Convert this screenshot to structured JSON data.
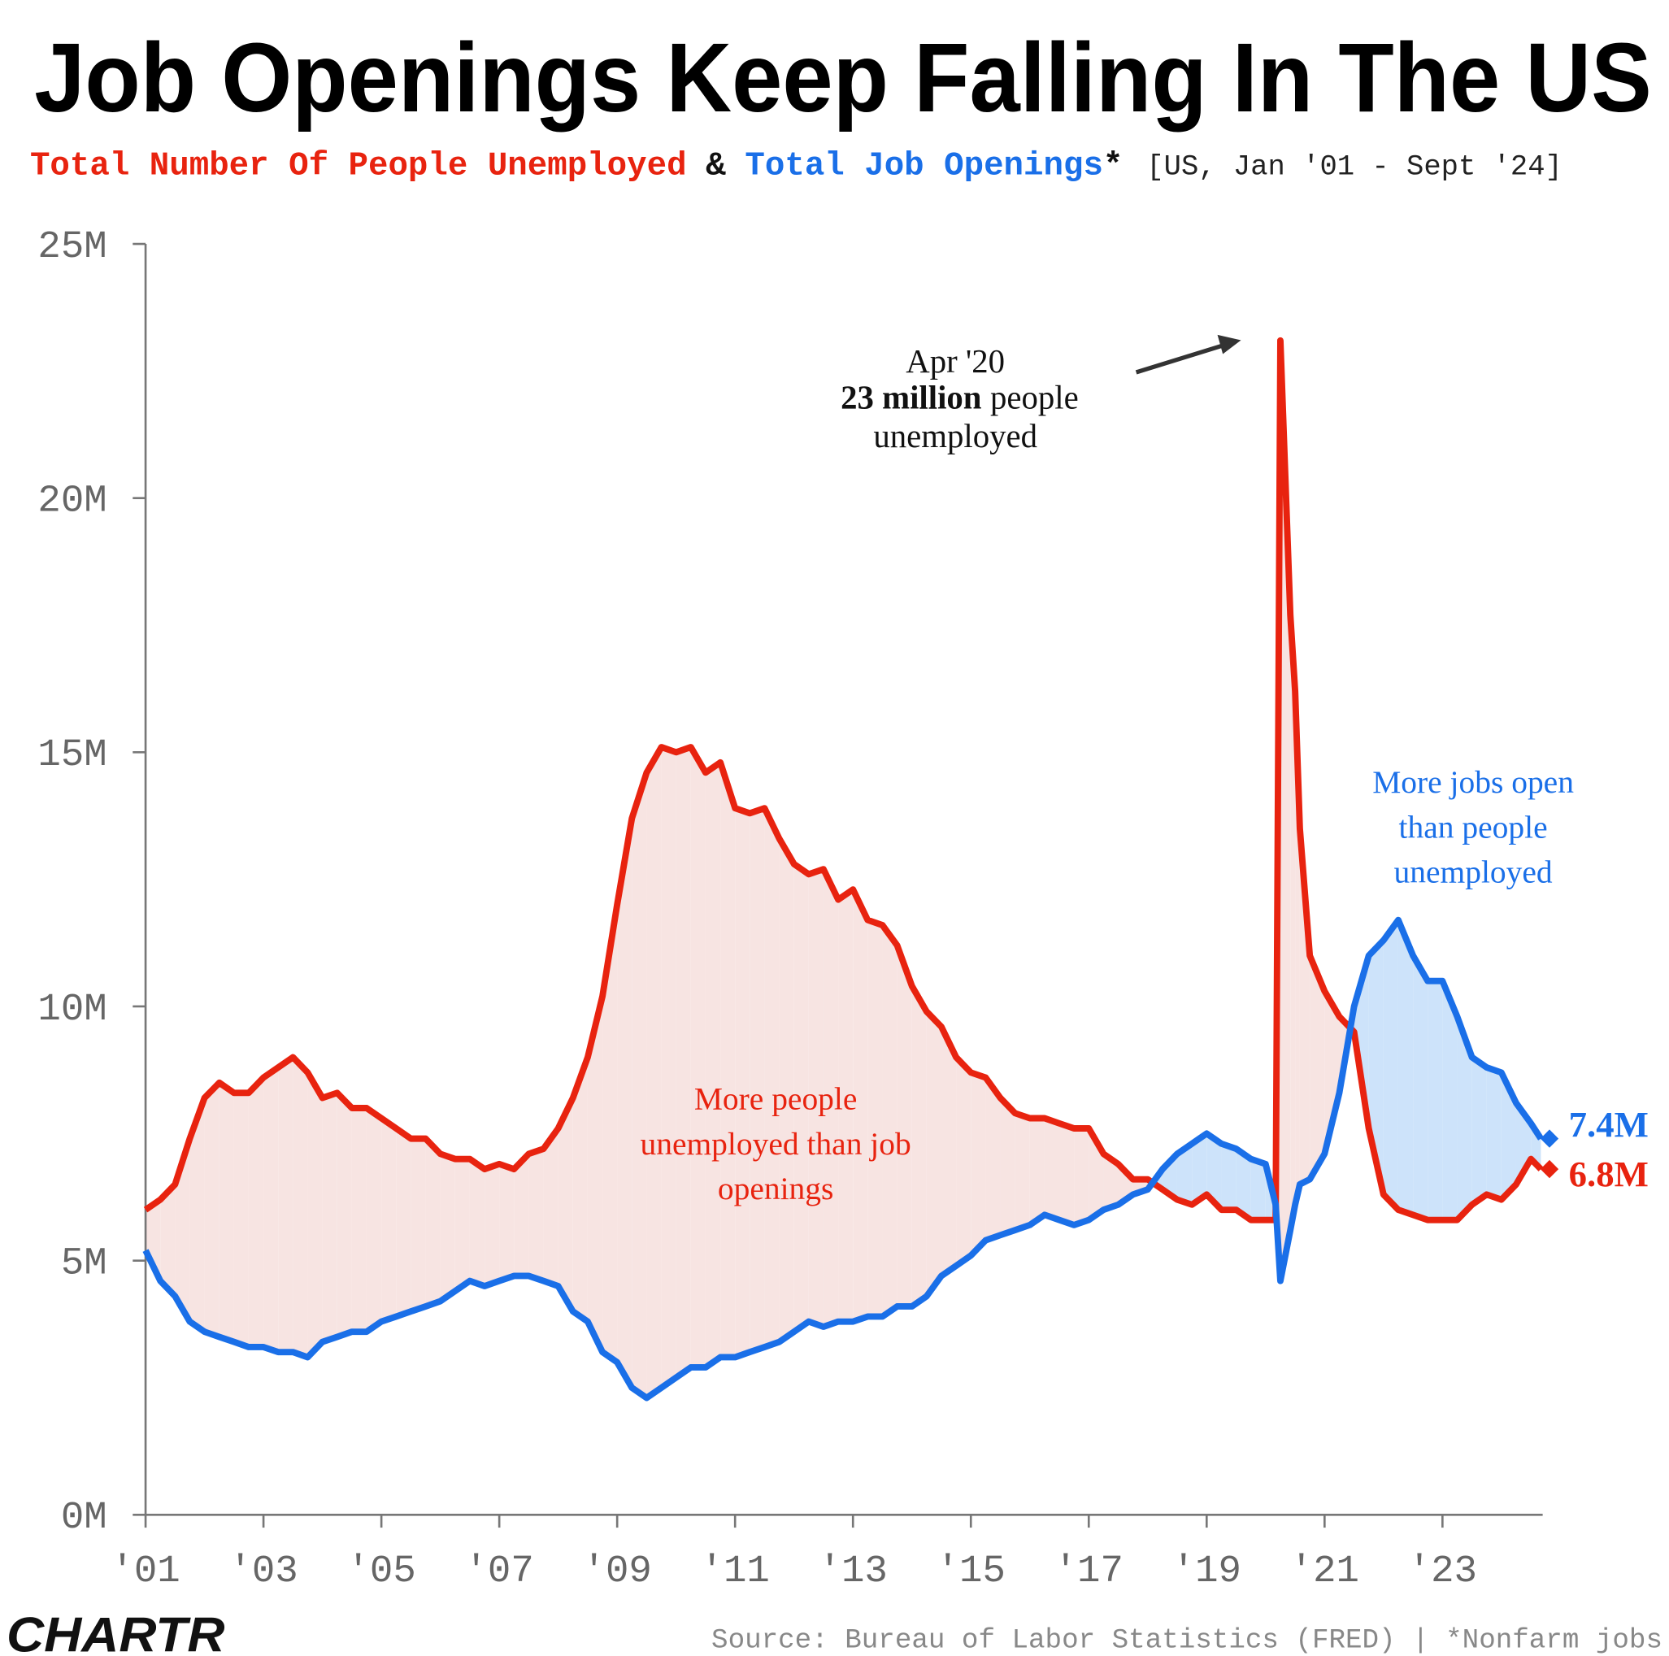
{
  "chart_data": {
    "type": "line",
    "title": "Job Openings Keep Falling In The US",
    "subtitle": {
      "joiner": "&",
      "star": "*",
      "range": "[US, Jan '01 - Sept '24]"
    },
    "xlim": [
      2001,
      2024.7
    ],
    "xticks": [
      {
        "value": 2001,
        "label": "'01"
      },
      {
        "value": 2003,
        "label": "'03"
      },
      {
        "value": 2005,
        "label": "'05"
      },
      {
        "value": 2007,
        "label": "'07"
      },
      {
        "value": 2009,
        "label": "'09"
      },
      {
        "value": 2011,
        "label": "'11"
      },
      {
        "value": 2013,
        "label": "'13"
      },
      {
        "value": 2015,
        "label": "'15"
      },
      {
        "value": 2017,
        "label": "'17"
      },
      {
        "value": 2019,
        "label": "'19"
      },
      {
        "value": 2021,
        "label": "'21"
      },
      {
        "value": 2023,
        "label": "'23"
      }
    ],
    "ylim": [
      0,
      25
    ],
    "yticks": [
      {
        "value": 0,
        "label": "0M"
      },
      {
        "value": 5,
        "label": "5M"
      },
      {
        "value": 10,
        "label": "10M"
      },
      {
        "value": 15,
        "label": "15M"
      },
      {
        "value": 20,
        "label": "20M"
      },
      {
        "value": 25,
        "label": "25M"
      }
    ],
    "x": [
      2001,
      2001.25,
      2001.5,
      2001.75,
      2002,
      2002.25,
      2002.5,
      2002.75,
      2003,
      2003.25,
      2003.5,
      2003.75,
      2004,
      2004.25,
      2004.5,
      2004.75,
      2005,
      2005.25,
      2005.5,
      2005.75,
      2006,
      2006.25,
      2006.5,
      2006.75,
      2007,
      2007.25,
      2007.5,
      2007.75,
      2008,
      2008.25,
      2008.5,
      2008.75,
      2009,
      2009.25,
      2009.5,
      2009.75,
      2010,
      2010.25,
      2010.5,
      2010.75,
      2011,
      2011.25,
      2011.5,
      2011.75,
      2012,
      2012.25,
      2012.5,
      2012.75,
      2013,
      2013.25,
      2013.5,
      2013.75,
      2014,
      2014.25,
      2014.5,
      2014.75,
      2015,
      2015.25,
      2015.5,
      2015.75,
      2016,
      2016.25,
      2016.5,
      2016.75,
      2017,
      2017.25,
      2017.5,
      2017.75,
      2018,
      2018.25,
      2018.5,
      2018.75,
      2019,
      2019.25,
      2019.5,
      2019.75,
      2020,
      2020.17,
      2020.25,
      2020.42,
      2020.5,
      2020.58,
      2020.75,
      2021,
      2021.25,
      2021.5,
      2021.75,
      2022,
      2022.25,
      2022.5,
      2022.75,
      2023,
      2023.25,
      2023.5,
      2023.75,
      2024,
      2024.25,
      2024.5,
      2024.67
    ],
    "series": [
      {
        "name": "Total Number Of People Unemployed",
        "color": "#e8230f",
        "fill": "#f7e4e2",
        "end_label": "6.8M",
        "values": [
          6.0,
          6.2,
          6.5,
          7.4,
          8.2,
          8.5,
          8.3,
          8.3,
          8.6,
          8.8,
          9.0,
          8.7,
          8.2,
          8.3,
          8.0,
          8.0,
          7.8,
          7.6,
          7.4,
          7.4,
          7.1,
          7.0,
          7.0,
          6.8,
          6.9,
          6.8,
          7.1,
          7.2,
          7.6,
          8.2,
          9.0,
          10.2,
          12.0,
          13.7,
          14.6,
          15.1,
          15.0,
          15.1,
          14.6,
          14.8,
          13.9,
          13.8,
          13.9,
          13.3,
          12.8,
          12.6,
          12.7,
          12.1,
          12.3,
          11.7,
          11.6,
          11.2,
          10.4,
          9.9,
          9.6,
          9.0,
          8.7,
          8.6,
          8.2,
          7.9,
          7.8,
          7.8,
          7.7,
          7.6,
          7.6,
          7.1,
          6.9,
          6.6,
          6.6,
          6.4,
          6.2,
          6.1,
          6.3,
          6.0,
          6.0,
          5.8,
          5.8,
          5.8,
          23.1,
          17.7,
          16.2,
          13.5,
          11.0,
          10.3,
          9.8,
          9.5,
          7.6,
          6.3,
          6.0,
          5.9,
          5.8,
          5.8,
          5.8,
          6.1,
          6.3,
          6.2,
          6.5,
          7.0,
          6.8
        ]
      },
      {
        "name": "Total Job Openings",
        "color": "#1a6fe8",
        "fill": "#cde3fa",
        "end_label": "7.4M",
        "values": [
          5.2,
          4.6,
          4.3,
          3.8,
          3.6,
          3.5,
          3.4,
          3.3,
          3.3,
          3.2,
          3.2,
          3.1,
          3.4,
          3.5,
          3.6,
          3.6,
          3.8,
          3.9,
          4.0,
          4.1,
          4.2,
          4.4,
          4.6,
          4.5,
          4.6,
          4.7,
          4.7,
          4.6,
          4.5,
          4.0,
          3.8,
          3.2,
          3.0,
          2.5,
          2.3,
          2.5,
          2.7,
          2.9,
          2.9,
          3.1,
          3.1,
          3.2,
          3.3,
          3.4,
          3.6,
          3.8,
          3.7,
          3.8,
          3.8,
          3.9,
          3.9,
          4.1,
          4.1,
          4.3,
          4.7,
          4.9,
          5.1,
          5.4,
          5.5,
          5.6,
          5.7,
          5.9,
          5.8,
          5.7,
          5.8,
          6.0,
          6.1,
          6.3,
          6.4,
          6.8,
          7.1,
          7.3,
          7.5,
          7.3,
          7.2,
          7.0,
          6.9,
          6.1,
          4.6,
          5.6,
          6.1,
          6.5,
          6.6,
          7.1,
          8.3,
          10.0,
          11.0,
          11.3,
          11.7,
          11.0,
          10.5,
          10.5,
          9.8,
          9.0,
          8.8,
          8.7,
          8.1,
          7.7,
          7.4
        ]
      }
    ],
    "annotations": [
      {
        "date": "Apr '20",
        "bold": "23 million",
        "rest": "people",
        "last": "unemployed"
      },
      {
        "lines": [
          "More people",
          "unemployed than job",
          "openings"
        ]
      },
      {
        "lines": [
          "More jobs open",
          "than people",
          "unemployed"
        ]
      }
    ],
    "source": "Source: Bureau of Labor Statistics (FRED)  | *Nonfarm jobs",
    "logo": "CHARTR"
  }
}
